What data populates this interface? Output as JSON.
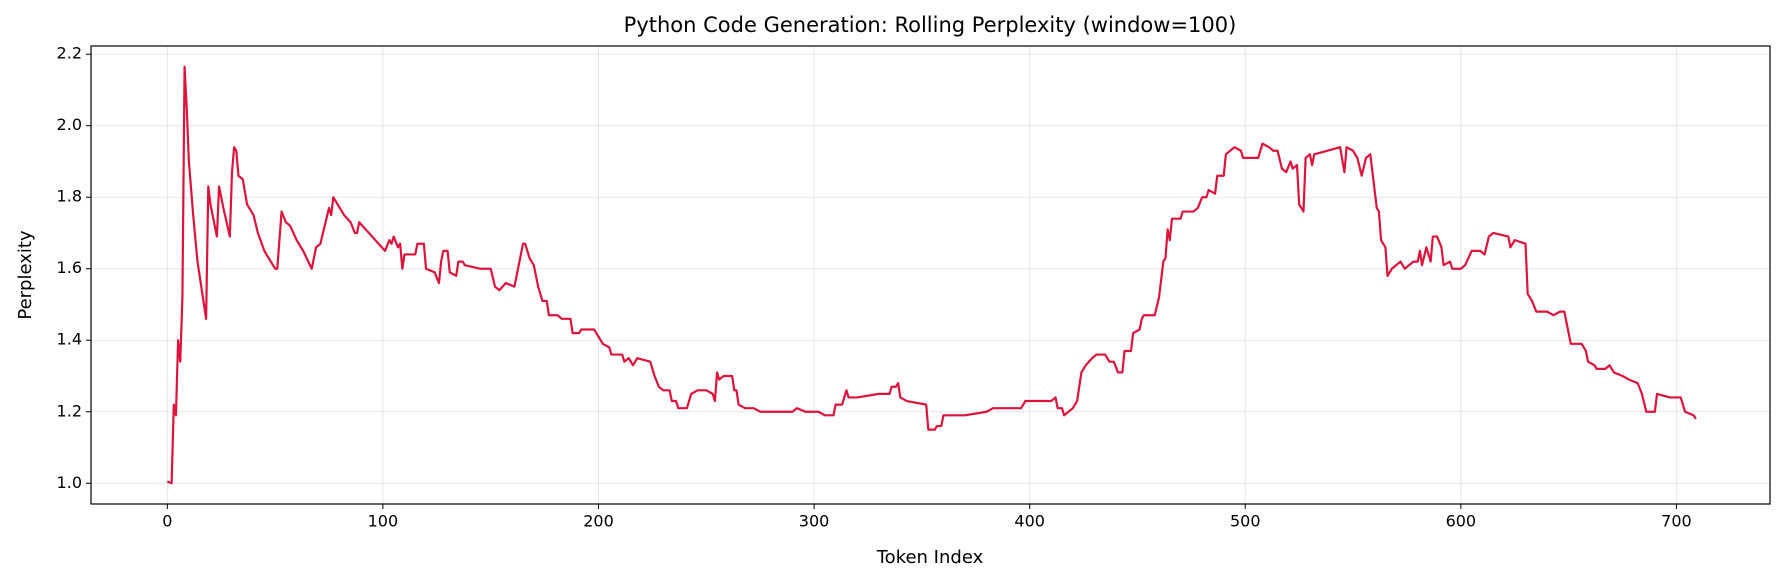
{
  "chart_data": {
    "type": "line",
    "title": "Python Code Generation: Rolling Perplexity (window=100)",
    "x_label": "Token Index",
    "y_label": "Perplexity",
    "color": "#dc143c",
    "grid": true,
    "xlim": [
      -35.4,
      743.4
    ],
    "ylim": [
      0.942,
      2.223
    ],
    "xticks": [
      0,
      100,
      200,
      300,
      400,
      500,
      600,
      700
    ],
    "yticks": [
      {
        "value": 1.0,
        "label": "1.0"
      },
      1.2,
      1.4,
      1.6,
      1.8,
      {
        "value": 2.0,
        "label": "2.0"
      },
      2.2
    ],
    "x": [
      0,
      2,
      3,
      4,
      5,
      6,
      7,
      8,
      9,
      10,
      12,
      14,
      16,
      18,
      19,
      20,
      22,
      23,
      24,
      26,
      29,
      30,
      31,
      32,
      33,
      35,
      37,
      40,
      42,
      45,
      48,
      50,
      51,
      53,
      55,
      57,
      60,
      63,
      67,
      69,
      71,
      73,
      75,
      76,
      77,
      79,
      82,
      85,
      87,
      88,
      89,
      92,
      95,
      98,
      101,
      103,
      104,
      105,
      107,
      108,
      109,
      110,
      115,
      116,
      119,
      120,
      124,
      126,
      127,
      128,
      130,
      131,
      134,
      135,
      137,
      138,
      145,
      150,
      152,
      154,
      157,
      161,
      163,
      165,
      166,
      168,
      170,
      172,
      174,
      176,
      177,
      181,
      183,
      187,
      188,
      191,
      192,
      198,
      200,
      202,
      205,
      206,
      211,
      212,
      214,
      216,
      218,
      224,
      226,
      228,
      230,
      233,
      234,
      236,
      237,
      241,
      243,
      246,
      250,
      253,
      254,
      255,
      256,
      258,
      262,
      263,
      264,
      265,
      268,
      272,
      275,
      290,
      292,
      296,
      302,
      305,
      309,
      310,
      313,
      315,
      316,
      320,
      330,
      335,
      336,
      338,
      339,
      340,
      343,
      352,
      353,
      356,
      357,
      359,
      360,
      370,
      380,
      383,
      396,
      398,
      410,
      412,
      413,
      415,
      416,
      418,
      420,
      422,
      424,
      426,
      429,
      431,
      435,
      437,
      439,
      441,
      443,
      444,
      447,
      448,
      451,
      452,
      453,
      458,
      460,
      462,
      463,
      464,
      465,
      466,
      470,
      471,
      476,
      478,
      480,
      482,
      483,
      486,
      487,
      490,
      491,
      495,
      498,
      499,
      506,
      508,
      511,
      513,
      515,
      517,
      519,
      521,
      522,
      524,
      525,
      527,
      528,
      530,
      531,
      532,
      538,
      544,
      546,
      547,
      550,
      552,
      554,
      556,
      558,
      559,
      561,
      562,
      563,
      565,
      566,
      568,
      572,
      574,
      578,
      580,
      581,
      582,
      584,
      586,
      587,
      589,
      591,
      592,
      595,
      596,
      600,
      602,
      605,
      609,
      611,
      613,
      615,
      622,
      623,
      625,
      630,
      631,
      633,
      635,
      640,
      643,
      646,
      648,
      649,
      651,
      656,
      658,
      659,
      662,
      663,
      667,
      669,
      671,
      675,
      678,
      682,
      684,
      686,
      690,
      691,
      697,
      702,
      704,
      708,
      709
    ],
    "values": [
      1.005,
      1.0,
      1.22,
      1.19,
      1.4,
      1.34,
      1.52,
      2.165,
      2.05,
      1.9,
      1.75,
      1.62,
      1.54,
      1.46,
      1.83,
      1.78,
      1.72,
      1.69,
      1.83,
      1.77,
      1.69,
      1.87,
      1.94,
      1.93,
      1.86,
      1.85,
      1.78,
      1.75,
      1.7,
      1.65,
      1.62,
      1.6,
      1.6,
      1.76,
      1.73,
      1.72,
      1.68,
      1.65,
      1.6,
      1.66,
      1.67,
      1.72,
      1.77,
      1.75,
      1.8,
      1.78,
      1.75,
      1.73,
      1.7,
      1.7,
      1.73,
      1.71,
      1.69,
      1.67,
      1.65,
      1.68,
      1.67,
      1.69,
      1.66,
      1.67,
      1.6,
      1.64,
      1.64,
      1.67,
      1.67,
      1.6,
      1.59,
      1.56,
      1.62,
      1.65,
      1.65,
      1.59,
      1.58,
      1.62,
      1.62,
      1.61,
      1.6,
      1.6,
      1.55,
      1.54,
      1.56,
      1.55,
      1.61,
      1.67,
      1.67,
      1.63,
      1.61,
      1.55,
      1.51,
      1.51,
      1.47,
      1.47,
      1.46,
      1.46,
      1.42,
      1.42,
      1.43,
      1.43,
      1.41,
      1.39,
      1.38,
      1.36,
      1.36,
      1.34,
      1.35,
      1.33,
      1.35,
      1.34,
      1.3,
      1.27,
      1.26,
      1.26,
      1.23,
      1.23,
      1.21,
      1.21,
      1.25,
      1.26,
      1.26,
      1.25,
      1.23,
      1.31,
      1.29,
      1.3,
      1.3,
      1.26,
      1.26,
      1.22,
      1.21,
      1.21,
      1.2,
      1.2,
      1.21,
      1.2,
      1.2,
      1.19,
      1.19,
      1.22,
      1.22,
      1.26,
      1.24,
      1.24,
      1.25,
      1.25,
      1.27,
      1.27,
      1.28,
      1.24,
      1.23,
      1.22,
      1.15,
      1.15,
      1.16,
      1.16,
      1.19,
      1.19,
      1.2,
      1.21,
      1.21,
      1.23,
      1.23,
      1.24,
      1.21,
      1.21,
      1.19,
      1.2,
      1.21,
      1.23,
      1.31,
      1.33,
      1.35,
      1.36,
      1.36,
      1.34,
      1.34,
      1.31,
      1.31,
      1.37,
      1.37,
      1.42,
      1.43,
      1.46,
      1.47,
      1.47,
      1.52,
      1.62,
      1.63,
      1.71,
      1.68,
      1.74,
      1.74,
      1.76,
      1.76,
      1.77,
      1.8,
      1.8,
      1.82,
      1.81,
      1.86,
      1.86,
      1.92,
      1.94,
      1.93,
      1.91,
      1.91,
      1.95,
      1.94,
      1.93,
      1.93,
      1.88,
      1.87,
      1.9,
      1.88,
      1.89,
      1.78,
      1.76,
      1.91,
      1.92,
      1.89,
      1.92,
      1.93,
      1.94,
      1.87,
      1.94,
      1.93,
      1.91,
      1.86,
      1.91,
      1.92,
      1.87,
      1.77,
      1.76,
      1.68,
      1.66,
      1.58,
      1.6,
      1.62,
      1.6,
      1.62,
      1.62,
      1.65,
      1.61,
      1.66,
      1.62,
      1.69,
      1.69,
      1.66,
      1.61,
      1.62,
      1.6,
      1.6,
      1.61,
      1.65,
      1.65,
      1.64,
      1.69,
      1.7,
      1.69,
      1.66,
      1.68,
      1.67,
      1.53,
      1.51,
      1.48,
      1.48,
      1.47,
      1.48,
      1.48,
      1.45,
      1.39,
      1.39,
      1.37,
      1.34,
      1.33,
      1.32,
      1.32,
      1.33,
      1.31,
      1.3,
      1.29,
      1.28,
      1.25,
      1.2,
      1.2,
      1.25,
      1.24,
      1.24,
      1.2,
      1.19,
      1.18
    ]
  }
}
